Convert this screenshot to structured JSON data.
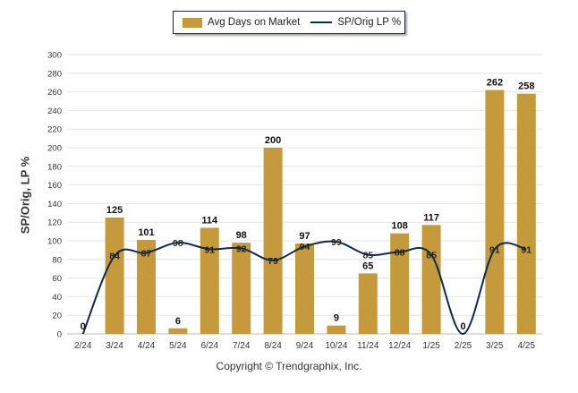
{
  "chart_data": {
    "type": "bar",
    "categories": [
      "2/24",
      "3/24",
      "4/24",
      "5/24",
      "6/24",
      "7/24",
      "8/24",
      "9/24",
      "10/24",
      "11/24",
      "12/24",
      "1/25",
      "2/25",
      "3/25",
      "4/25"
    ],
    "series": [
      {
        "name": "Avg Days on Market",
        "type": "bar",
        "color": "#c49a3c",
        "values": [
          0,
          125,
          101,
          6,
          114,
          98,
          200,
          97,
          9,
          65,
          108,
          117,
          0,
          262,
          258
        ]
      },
      {
        "name": "SP/Orig LP %",
        "type": "line",
        "color": "#0f2a4a",
        "values": [
          null,
          84,
          87,
          98,
          91,
          92,
          79,
          94,
          99,
          85,
          88,
          85,
          null,
          91,
          91
        ]
      }
    ],
    "ylabel": "SP/Orig, LP %",
    "ylim": [
      0,
      300
    ],
    "yticks": [
      0,
      20,
      40,
      60,
      80,
      100,
      120,
      140,
      160,
      180,
      200,
      220,
      240,
      260,
      280,
      300
    ],
    "grid": true,
    "legend": "top-center"
  },
  "legend": {
    "bar_label": "Avg Days on Market",
    "line_label": "SP/Orig LP %"
  },
  "footer": {
    "copyright": "Copyright © Trendgraphix, Inc."
  }
}
